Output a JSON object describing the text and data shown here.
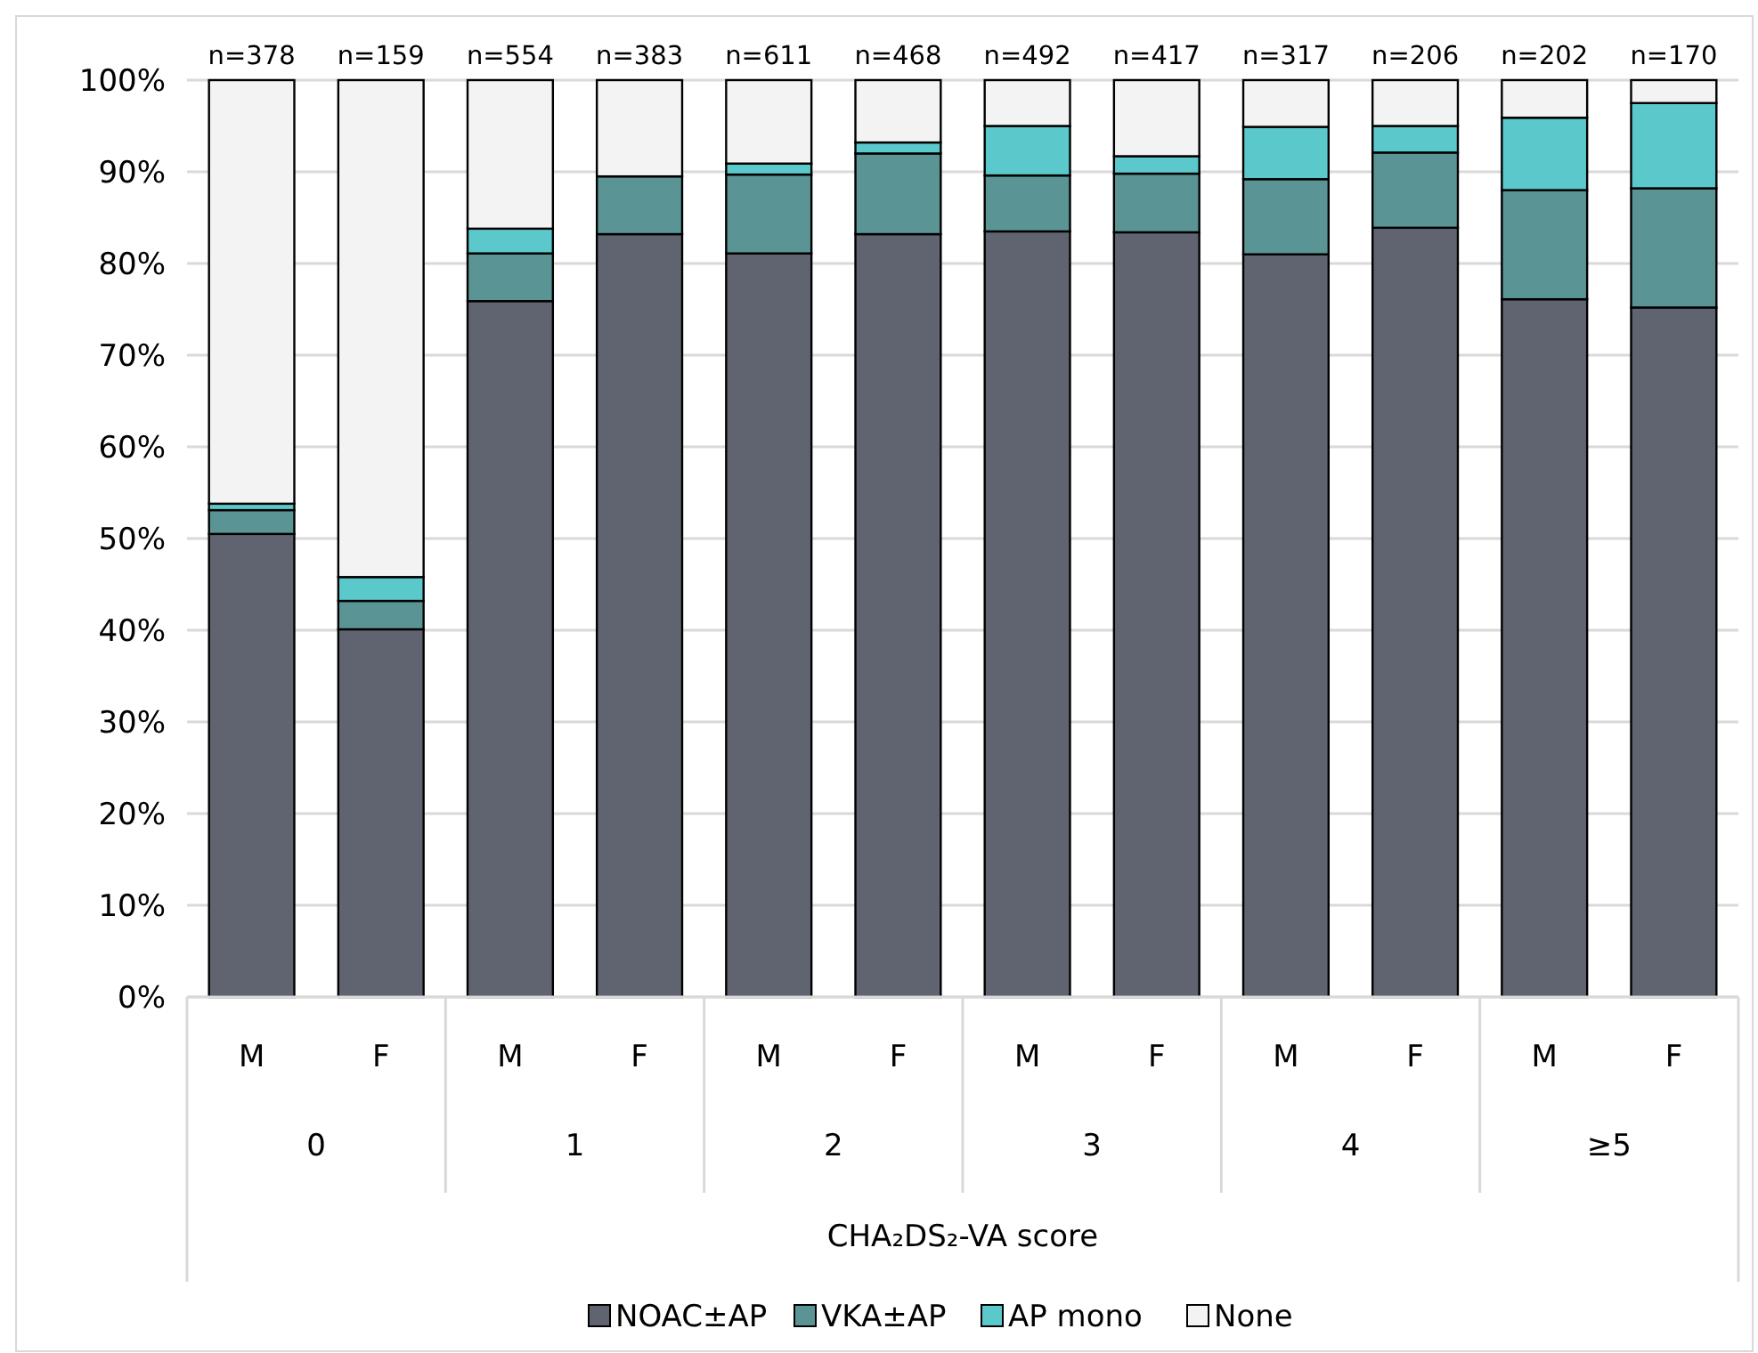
{
  "chart_data": {
    "type": "bar",
    "stacked": true,
    "xlabel": "CHA₂DS₂-VA score",
    "categories": [
      "M",
      "F",
      "M",
      "F",
      "M",
      "F",
      "M",
      "F",
      "M",
      "F",
      "M",
      "F"
    ],
    "series": [
      {
        "name": "NOAC±AP",
        "color": "#5f6470",
        "values": [
          50.5,
          40.1,
          75.9,
          83.2,
          81.1,
          83.2,
          83.5,
          83.4,
          81.0,
          83.9,
          76.1,
          75.2
        ]
      },
      {
        "name": "VKA±AP",
        "color": "#5a9494",
        "values": [
          2.6,
          3.1,
          5.2,
          6.3,
          8.6,
          8.8,
          6.1,
          6.4,
          8.2,
          8.2,
          11.9,
          13.0
        ]
      },
      {
        "name": "AP mono",
        "color": "#5bc8cb",
        "values": [
          0.7,
          2.6,
          2.7,
          0,
          1.2,
          1.2,
          5.4,
          1.9,
          5.7,
          2.9,
          7.9,
          9.3
        ]
      },
      {
        "name": "None",
        "color": "#f2f3f2",
        "values": [
          46.2,
          54.2,
          16.2,
          10.5,
          9.1,
          6.8,
          5.0,
          8.3,
          5.1,
          5.0,
          4.1,
          2.5
        ]
      }
    ],
    "ylim": [
      0,
      100
    ],
    "yticks": [
      {
        "value": 0,
        "label": "0%"
      },
      {
        "value": 10,
        "label": "10%"
      },
      {
        "value": 20,
        "label": "20%"
      },
      {
        "value": 30,
        "label": "30%"
      },
      {
        "value": 40,
        "label": "40%"
      },
      {
        "value": 50,
        "label": "50%"
      },
      {
        "value": 60,
        "label": "60%"
      },
      {
        "value": 70,
        "label": "70%"
      },
      {
        "value": 80,
        "label": "80%"
      },
      {
        "value": 90,
        "label": "90%"
      },
      {
        "value": 100,
        "label": "100%"
      }
    ],
    "annotations": [
      "n=378",
      "n=159",
      "n=554",
      "n=383",
      "n=611",
      "n=468",
      "n=492",
      "n=417",
      "n=317",
      "n=206",
      "n=202",
      "n=170",
      "0",
      "1",
      "2",
      "3",
      "4",
      "≥5"
    ],
    "grid": "y",
    "legend": "bottom"
  }
}
